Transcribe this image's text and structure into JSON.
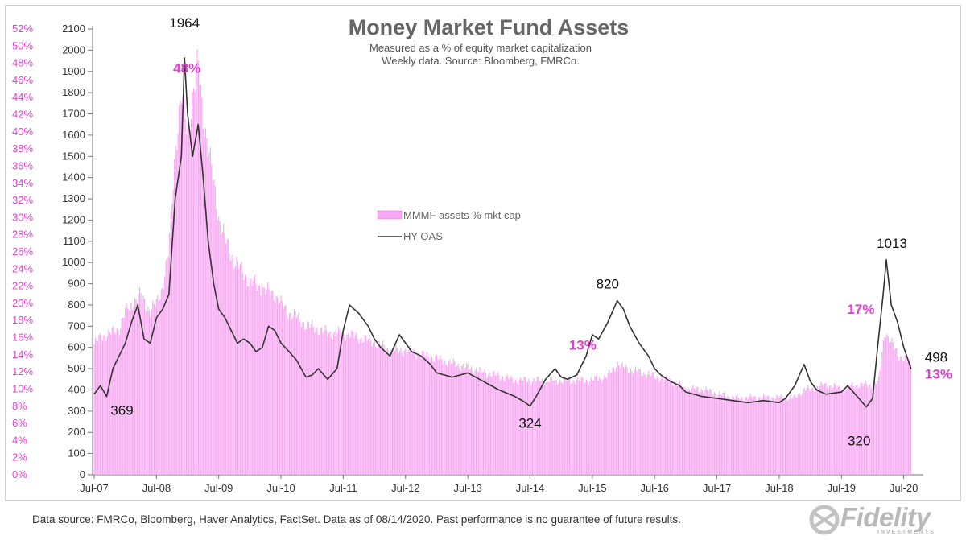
{
  "chart_data": {
    "type": "bar+line",
    "title": "Money Market Fund Assets",
    "subtitle_lines": [
      "Measured as a % of equity market capitalization",
      "Weekly data.  Source: Bloomberg, FMRCo."
    ],
    "x_ticks": [
      "Jul-07",
      "Jul-08",
      "Jul-09",
      "Jul-10",
      "Jul-11",
      "Jul-12",
      "Jul-13",
      "Jul-14",
      "Jul-15",
      "Jul-16",
      "Jul-17",
      "Jul-18",
      "Jul-19",
      "Jul-20"
    ],
    "left_axis": {
      "ticks": [
        "0%",
        "2%",
        "4%",
        "6%",
        "8%",
        "10%",
        "12%",
        "14%",
        "16%",
        "18%",
        "20%",
        "22%",
        "24%",
        "26%",
        "28%",
        "30%",
        "32%",
        "34%",
        "36%",
        "38%",
        "40%",
        "42%",
        "44%",
        "46%",
        "48%",
        "50%",
        "52%"
      ],
      "range": [
        0,
        52
      ]
    },
    "right_axis": {
      "ticks": [
        "0",
        "100",
        "200",
        "300",
        "400",
        "500",
        "600",
        "700",
        "800",
        "900",
        "1000",
        "1100",
        "1200",
        "1300",
        "1400",
        "1500",
        "1600",
        "1700",
        "1800",
        "1900",
        "2000",
        "2100"
      ],
      "range": [
        0,
        2100
      ]
    },
    "legend": {
      "placement": "center",
      "items": [
        "MMMF assets % mkt cap",
        "HY OAS"
      ]
    },
    "colors": {
      "bars": "#f7a8f2",
      "line": "#333333",
      "pink_label": "#e040d0",
      "title": "#666666"
    },
    "series": [
      {
        "name": "MMMF assets % mkt cap",
        "kind": "bar",
        "axis": "left",
        "points": [
          [
            2007.5,
            15.2
          ],
          [
            2007.6,
            16.0
          ],
          [
            2007.75,
            16.5
          ],
          [
            2007.9,
            17.0
          ],
          [
            2008.0,
            19.0
          ],
          [
            2008.1,
            20.0
          ],
          [
            2008.25,
            21.0
          ],
          [
            2008.4,
            19.0
          ],
          [
            2008.5,
            20.0
          ],
          [
            2008.6,
            22.0
          ],
          [
            2008.7,
            26.0
          ],
          [
            2008.8,
            38.0
          ],
          [
            2008.9,
            44.0
          ],
          [
            2009.0,
            40.0
          ],
          [
            2009.08,
            44.0
          ],
          [
            2009.17,
            48.0
          ],
          [
            2009.25,
            42.0
          ],
          [
            2009.33,
            38.0
          ],
          [
            2009.42,
            34.0
          ],
          [
            2009.5,
            30.0
          ],
          [
            2009.6,
            27.5
          ],
          [
            2009.75,
            25.0
          ],
          [
            2009.9,
            23.5
          ],
          [
            2010.0,
            22.5
          ],
          [
            2010.25,
            21.5
          ],
          [
            2010.4,
            21.0
          ],
          [
            2010.6,
            19.0
          ],
          [
            2010.75,
            18.5
          ],
          [
            2010.9,
            17.5
          ],
          [
            2011.1,
            17.0
          ],
          [
            2011.25,
            16.5
          ],
          [
            2011.5,
            16.5
          ],
          [
            2011.75,
            16.0
          ],
          [
            2012.0,
            15.5
          ],
          [
            2012.25,
            14.5
          ],
          [
            2012.5,
            14.5
          ],
          [
            2012.75,
            14.0
          ],
          [
            2013.0,
            13.5
          ],
          [
            2013.25,
            13.0
          ],
          [
            2013.5,
            12.5
          ],
          [
            2013.75,
            12.0
          ],
          [
            2014.0,
            11.5
          ],
          [
            2014.25,
            11.0
          ],
          [
            2014.5,
            11.0
          ],
          [
            2014.75,
            11.0
          ],
          [
            2015.0,
            11.0
          ],
          [
            2015.25,
            11.0
          ],
          [
            2015.5,
            11.0
          ],
          [
            2015.75,
            11.5
          ],
          [
            2015.9,
            13.0
          ],
          [
            2016.0,
            12.5
          ],
          [
            2016.25,
            12.0
          ],
          [
            2016.5,
            11.5
          ],
          [
            2016.75,
            11.0
          ],
          [
            2017.0,
            10.0
          ],
          [
            2017.25,
            10.0
          ],
          [
            2017.5,
            9.5
          ],
          [
            2017.75,
            9.0
          ],
          [
            2018.0,
            9.0
          ],
          [
            2018.25,
            9.0
          ],
          [
            2018.5,
            9.0
          ],
          [
            2018.75,
            9.0
          ],
          [
            2018.9,
            10.0
          ],
          [
            2019.0,
            10.0
          ],
          [
            2019.25,
            10.5
          ],
          [
            2019.5,
            10.0
          ],
          [
            2019.75,
            10.5
          ],
          [
            2020.0,
            10.5
          ],
          [
            2020.1,
            11.0
          ],
          [
            2020.2,
            17.0
          ],
          [
            2020.25,
            16.0
          ],
          [
            2020.33,
            15.0
          ],
          [
            2020.42,
            14.0
          ],
          [
            2020.5,
            13.5
          ],
          [
            2020.62,
            13.0
          ]
        ]
      },
      {
        "name": "HY OAS",
        "kind": "line",
        "axis": "right",
        "points": [
          [
            2007.5,
            380
          ],
          [
            2007.6,
            420
          ],
          [
            2007.7,
            369
          ],
          [
            2007.8,
            500
          ],
          [
            2007.9,
            560
          ],
          [
            2008.0,
            620
          ],
          [
            2008.1,
            720
          ],
          [
            2008.2,
            800
          ],
          [
            2008.3,
            640
          ],
          [
            2008.4,
            620
          ],
          [
            2008.5,
            740
          ],
          [
            2008.6,
            780
          ],
          [
            2008.7,
            850
          ],
          [
            2008.8,
            1300
          ],
          [
            2008.9,
            1500
          ],
          [
            2008.95,
            1964
          ],
          [
            2009.0,
            1700
          ],
          [
            2009.08,
            1500
          ],
          [
            2009.17,
            1650
          ],
          [
            2009.25,
            1400
          ],
          [
            2009.33,
            1100
          ],
          [
            2009.42,
            900
          ],
          [
            2009.5,
            780
          ],
          [
            2009.6,
            740
          ],
          [
            2009.7,
            680
          ],
          [
            2009.8,
            620
          ],
          [
            2009.9,
            640
          ],
          [
            2010.0,
            620
          ],
          [
            2010.1,
            580
          ],
          [
            2010.2,
            600
          ],
          [
            2010.3,
            700
          ],
          [
            2010.4,
            680
          ],
          [
            2010.5,
            620
          ],
          [
            2010.6,
            590
          ],
          [
            2010.75,
            540
          ],
          [
            2010.9,
            460
          ],
          [
            2011.0,
            470
          ],
          [
            2011.1,
            500
          ],
          [
            2011.25,
            450
          ],
          [
            2011.4,
            500
          ],
          [
            2011.5,
            680
          ],
          [
            2011.6,
            800
          ],
          [
            2011.75,
            760
          ],
          [
            2011.9,
            700
          ],
          [
            2012.0,
            640
          ],
          [
            2012.1,
            600
          ],
          [
            2012.25,
            560
          ],
          [
            2012.4,
            660
          ],
          [
            2012.5,
            620
          ],
          [
            2012.6,
            580
          ],
          [
            2012.75,
            560
          ],
          [
            2012.9,
            520
          ],
          [
            2013.0,
            480
          ],
          [
            2013.25,
            460
          ],
          [
            2013.5,
            480
          ],
          [
            2013.75,
            440
          ],
          [
            2014.0,
            400
          ],
          [
            2014.25,
            370
          ],
          [
            2014.4,
            345
          ],
          [
            2014.5,
            324
          ],
          [
            2014.6,
            370
          ],
          [
            2014.75,
            450
          ],
          [
            2014.9,
            500
          ],
          [
            2015.0,
            460
          ],
          [
            2015.1,
            450
          ],
          [
            2015.25,
            470
          ],
          [
            2015.4,
            560
          ],
          [
            2015.5,
            660
          ],
          [
            2015.6,
            640
          ],
          [
            2015.75,
            720
          ],
          [
            2015.9,
            820
          ],
          [
            2016.0,
            780
          ],
          [
            2016.1,
            700
          ],
          [
            2016.25,
            620
          ],
          [
            2016.4,
            560
          ],
          [
            2016.5,
            500
          ],
          [
            2016.6,
            470
          ],
          [
            2016.75,
            440
          ],
          [
            2016.9,
            420
          ],
          [
            2017.0,
            390
          ],
          [
            2017.25,
            370
          ],
          [
            2017.5,
            360
          ],
          [
            2017.75,
            350
          ],
          [
            2018.0,
            340
          ],
          [
            2018.25,
            350
          ],
          [
            2018.5,
            340
          ],
          [
            2018.6,
            360
          ],
          [
            2018.75,
            420
          ],
          [
            2018.9,
            520
          ],
          [
            2019.0,
            440
          ],
          [
            2019.1,
            400
          ],
          [
            2019.25,
            380
          ],
          [
            2019.5,
            390
          ],
          [
            2019.6,
            420
          ],
          [
            2019.75,
            370
          ],
          [
            2019.9,
            320
          ],
          [
            2020.0,
            360
          ],
          [
            2020.08,
            600
          ],
          [
            2020.17,
            850
          ],
          [
            2020.22,
            1013
          ],
          [
            2020.3,
            800
          ],
          [
            2020.4,
            720
          ],
          [
            2020.5,
            600
          ],
          [
            2020.62,
            498
          ]
        ]
      }
    ],
    "annotations": [
      {
        "text": "1964",
        "x": 2008.95,
        "y": 1964,
        "axis": "right",
        "color": "black"
      },
      {
        "text": "48%",
        "x": 2009.17,
        "y": 48,
        "axis": "left",
        "color": "pink"
      },
      {
        "text": "369",
        "x": 2007.7,
        "y": 369,
        "axis": "right",
        "color": "black"
      },
      {
        "text": "324",
        "x": 2014.5,
        "y": 324,
        "axis": "right",
        "color": "black"
      },
      {
        "text": "820",
        "x": 2015.9,
        "y": 820,
        "axis": "right",
        "color": "black"
      },
      {
        "text": "13%",
        "x": 2015.9,
        "y": 13,
        "axis": "left",
        "color": "pink"
      },
      {
        "text": "1013",
        "x": 2020.22,
        "y": 1013,
        "axis": "right",
        "color": "black"
      },
      {
        "text": "17%",
        "x": 2020.2,
        "y": 17,
        "axis": "left",
        "color": "pink"
      },
      {
        "text": "320",
        "x": 2019.9,
        "y": 320,
        "axis": "right",
        "color": "black"
      },
      {
        "text": "498",
        "x": 2020.62,
        "y": 498,
        "axis": "right",
        "color": "black"
      },
      {
        "text": "13%",
        "x": 2020.62,
        "y": 13,
        "axis": "left",
        "color": "pink"
      }
    ]
  },
  "footer": {
    "note": "Data source: FMRCo, Bloomberg, Haver Analytics, FactSet. Data as of 08/14/2020. Past performance is no guarantee of future results."
  },
  "logo": {
    "text": "Fidelity",
    "sub": "INVESTMENTS"
  }
}
